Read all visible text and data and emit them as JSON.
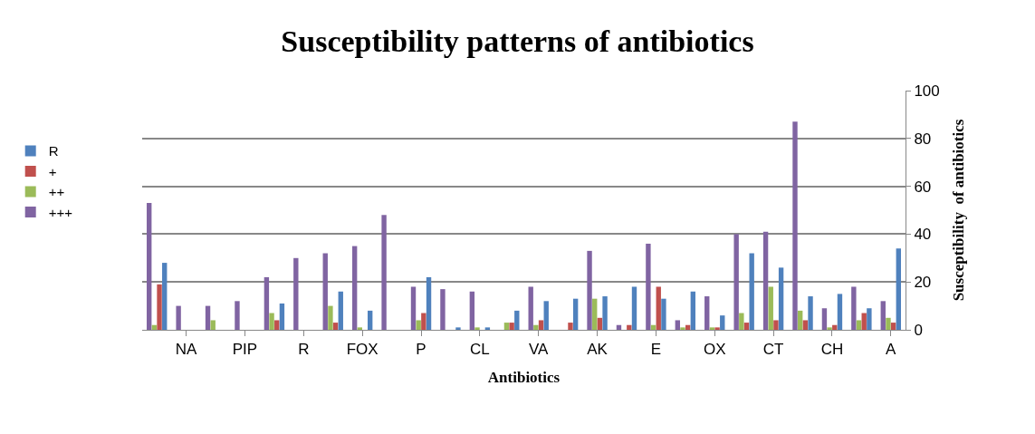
{
  "chart_data": {
    "type": "bar",
    "title": "Susceptibility patterns of antibiotics",
    "xlabel": "Antibiotics",
    "ylabel": "Susceptibility  of antibiotics",
    "categories": [
      null,
      "NA",
      null,
      "PIP",
      null,
      "R",
      null,
      "FOX",
      null,
      "P",
      null,
      "CL",
      null,
      "VA",
      null,
      "AK",
      null,
      "E",
      null,
      "OX",
      null,
      "CT",
      null,
      "CH",
      null,
      "A"
    ],
    "series": [
      {
        "name": "R",
        "color": "#4f81bd",
        "values": [
          28,
          0,
          0,
          0,
          11,
          0,
          16,
          8,
          0,
          22,
          1,
          1,
          8,
          12,
          13,
          14,
          18,
          13,
          16,
          6,
          32,
          26,
          14,
          15,
          9,
          34
        ]
      },
      {
        "name": "+",
        "color": "#c0504d",
        "values": [
          19,
          0,
          0,
          0,
          4,
          0,
          3,
          0,
          0,
          7,
          0,
          0,
          3,
          4,
          3,
          5,
          2,
          18,
          2,
          1,
          3,
          4,
          4,
          2,
          7,
          3
        ]
      },
      {
        "name": "++",
        "color": "#9bbb59",
        "values": [
          2,
          0,
          4,
          0,
          7,
          0,
          10,
          1,
          0,
          4,
          0,
          1,
          3,
          2,
          0,
          13,
          0,
          2,
          1,
          1,
          7,
          18,
          8,
          1,
          4,
          5
        ]
      },
      {
        "name": "+++",
        "color": "#8064a2",
        "values": [
          53,
          10,
          10,
          12,
          22,
          30,
          32,
          35,
          48,
          18,
          17,
          16,
          0,
          18,
          0,
          33,
          2,
          36,
          4,
          14,
          40,
          41,
          87,
          9,
          18,
          12
        ]
      }
    ],
    "ylim": [
      0,
      100
    ],
    "yticks": [
      0,
      20,
      40,
      60,
      80,
      100
    ],
    "grid": "y",
    "legend": "left"
  }
}
